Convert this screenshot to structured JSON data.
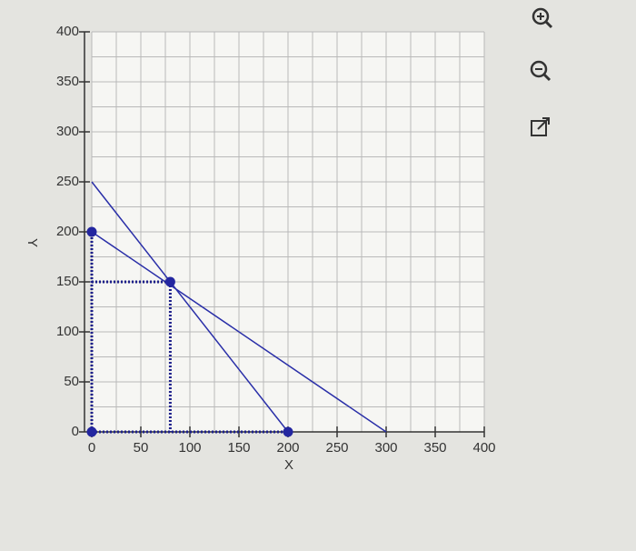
{
  "chart_data": {
    "type": "line",
    "xlabel": "X",
    "ylabel": "Y",
    "xlim": [
      0,
      400
    ],
    "xticks": [
      0,
      50,
      100,
      150,
      200,
      250,
      300,
      350,
      400
    ],
    "ylim": [
      0,
      400
    ],
    "yticks": [
      0,
      50,
      100,
      150,
      200,
      250,
      300,
      350,
      400
    ],
    "grid": true,
    "series": [
      {
        "color": "#2a2fa8",
        "style": "solid",
        "x": [
          0,
          200
        ],
        "values": [
          250,
          0
        ]
      },
      {
        "color": "#2a2fa8",
        "style": "solid",
        "x": [
          0,
          300
        ],
        "values": [
          200,
          0
        ]
      },
      {
        "color": "#1c1f8a",
        "style": "dotted",
        "x": [
          0,
          0
        ],
        "values": [
          0,
          200
        ]
      },
      {
        "color": "#1c1f8a",
        "style": "dotted",
        "x": [
          0,
          80
        ],
        "values": [
          150,
          150
        ]
      },
      {
        "color": "#1c1f8a",
        "style": "dotted",
        "x": [
          80,
          80
        ],
        "values": [
          150,
          0
        ]
      },
      {
        "color": "#1c1f8a",
        "style": "dotted",
        "x": [
          0,
          200
        ],
        "values": [
          0,
          0
        ]
      },
      {
        "color": "#2326a0",
        "style": "markers",
        "x": [
          0,
          80,
          200,
          0
        ],
        "values": [
          200,
          150,
          0,
          0
        ]
      }
    ]
  }
}
